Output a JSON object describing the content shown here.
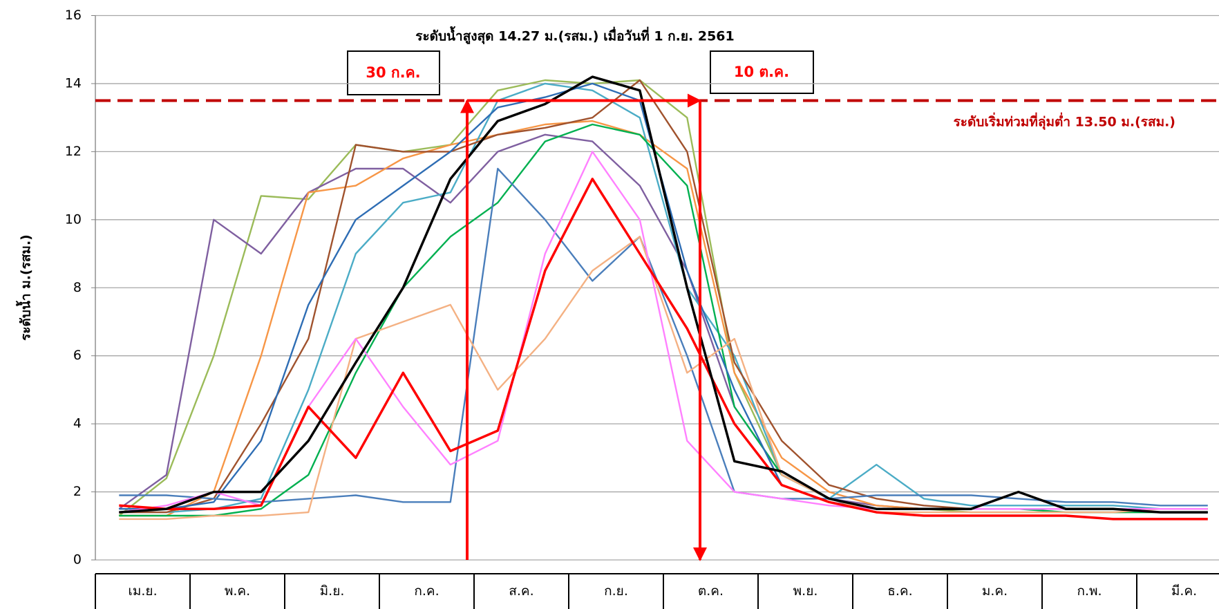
{
  "chart_data": {
    "type": "line",
    "title": "ระดับน้ำสูงสุด 14.27 ม.(รสม.) เมื่อวันที่ 1 ก.ย. 2561",
    "y_label": "ระดับน้ำ ม.(รสม.)",
    "annotations": [
      "30 ก.ค.",
      "10 ต.ค."
    ],
    "threshold": 13.5,
    "threshold_label": "ระดับเริ่มท่วมที่ลุ่มต่ำ 13.50 ม.(รสม.)",
    "categories": [
      "เม.ย.",
      "พ.ค.",
      "มิ.ย.",
      "ก.ค.",
      "ส.ค.",
      "ก.ย.",
      "ต.ค.",
      "พ.ย.",
      "ธ.ค.",
      "ม.ค.",
      "ก.พ.",
      "มี.ค."
    ],
    "xlim": [
      0,
      12
    ],
    "x": [
      0.25,
      0.75,
      1.25,
      1.75,
      2.25,
      2.75,
      3.25,
      3.75,
      4.25,
      4.75,
      5.25,
      5.75,
      6.25,
      6.75,
      7.25,
      7.75,
      8.25,
      8.75,
      9.25,
      9.75,
      10.25,
      10.75,
      11.25,
      11.75
    ],
    "ylim": [
      0,
      16
    ],
    "yticks": [
      0,
      2,
      4,
      6,
      8,
      10,
      12,
      14,
      16
    ],
    "grid": true,
    "series": [
      {
        "color": "#9bbb59",
        "values": [
          1.3,
          2.4,
          6.0,
          10.7,
          10.6,
          12.2,
          12.0,
          12.2,
          13.8,
          14.1,
          14.0,
          14.1,
          13.0,
          5.5,
          2.5,
          1.8,
          1.5,
          1.5,
          1.4,
          1.4,
          1.4,
          1.4,
          1.4,
          1.4
        ]
      },
      {
        "color": "#7f5fa0",
        "values": [
          1.5,
          2.5,
          10.0,
          9.0,
          10.8,
          11.5,
          11.5,
          10.5,
          12.0,
          12.5,
          12.3,
          11.0,
          8.5,
          4.5,
          2.5,
          1.8,
          1.6,
          1.5,
          1.5,
          1.5,
          1.5,
          1.5,
          1.5,
          1.5
        ]
      },
      {
        "color": "#f79646",
        "values": [
          1.3,
          1.3,
          2.0,
          6.0,
          10.8,
          11.0,
          11.8,
          12.2,
          12.5,
          12.8,
          12.9,
          12.5,
          11.5,
          5.5,
          3.0,
          2.0,
          1.6,
          1.5,
          1.5,
          1.5,
          1.5,
          1.5,
          1.5,
          1.5
        ]
      },
      {
        "color": "#4bacc6",
        "values": [
          1.4,
          1.4,
          1.5,
          1.8,
          5.0,
          9.0,
          10.5,
          10.8,
          13.5,
          14.0,
          13.8,
          13.0,
          8.0,
          6.0,
          2.5,
          1.8,
          2.8,
          1.8,
          1.6,
          1.6,
          1.6,
          1.6,
          1.5,
          1.5
        ]
      },
      {
        "color": "#a0522d",
        "values": [
          1.4,
          1.4,
          1.8,
          4.0,
          6.5,
          12.2,
          12.0,
          12.0,
          12.5,
          12.7,
          13.0,
          14.1,
          12.0,
          5.8,
          3.5,
          2.2,
          1.8,
          1.6,
          1.5,
          1.5,
          1.5,
          1.5,
          1.5,
          1.5
        ]
      },
      {
        "color": "#00b050",
        "values": [
          1.3,
          1.3,
          1.3,
          1.5,
          2.5,
          5.5,
          8.0,
          9.5,
          10.5,
          12.3,
          12.8,
          12.5,
          11.0,
          4.5,
          2.5,
          1.8,
          1.5,
          1.5,
          1.5,
          1.5,
          1.4,
          1.4,
          1.4,
          1.4
        ]
      },
      {
        "color": "#2e6db4",
        "values": [
          1.5,
          1.5,
          1.7,
          3.5,
          7.5,
          10.0,
          11.0,
          12.0,
          13.3,
          13.6,
          14.0,
          13.5,
          8.5,
          5.0,
          2.2,
          1.7,
          1.5,
          1.5,
          1.5,
          1.5,
          1.5,
          1.5,
          1.4,
          1.4
        ]
      },
      {
        "color": "#4a7ebb",
        "values": [
          1.9,
          1.9,
          1.8,
          1.7,
          1.8,
          1.9,
          1.7,
          1.7,
          11.5,
          10.0,
          8.2,
          9.5,
          6.0,
          2.0,
          1.8,
          1.8,
          1.9,
          1.9,
          1.9,
          1.8,
          1.7,
          1.7,
          1.6,
          1.6
        ]
      },
      {
        "color": "#f4b183",
        "values": [
          1.2,
          1.2,
          1.3,
          1.3,
          1.4,
          6.5,
          7.0,
          7.5,
          5.0,
          6.5,
          8.5,
          9.5,
          5.5,
          6.5,
          2.5,
          1.8,
          1.4,
          1.4,
          1.4,
          1.4,
          1.4,
          1.4,
          1.5,
          1.5
        ]
      },
      {
        "color": "#ff80ff",
        "values": [
          1.4,
          1.6,
          2.0,
          1.6,
          4.5,
          6.5,
          4.5,
          2.8,
          3.5,
          9.0,
          12.0,
          10.0,
          3.5,
          2.0,
          1.8,
          1.6,
          1.5,
          1.5,
          1.5,
          1.5,
          1.5,
          1.5,
          1.5,
          1.5
        ]
      },
      {
        "color": "#ff0000",
        "values": [
          1.6,
          1.5,
          1.5,
          1.6,
          4.5,
          3.0,
          5.5,
          3.2,
          3.8,
          8.5,
          11.2,
          9.0,
          6.8,
          4.0,
          2.2,
          1.7,
          1.4,
          1.3,
          1.3,
          1.3,
          1.3,
          1.2,
          1.2,
          1.2
        ]
      },
      {
        "color": "#000000",
        "values": [
          1.4,
          1.5,
          2.0,
          2.0,
          3.5,
          5.8,
          8.0,
          11.2,
          12.9,
          13.4,
          14.2,
          13.8,
          8.0,
          2.9,
          2.6,
          1.8,
          1.5,
          1.5,
          1.5,
          2.0,
          1.5,
          1.5,
          1.4,
          1.4
        ]
      }
    ]
  }
}
